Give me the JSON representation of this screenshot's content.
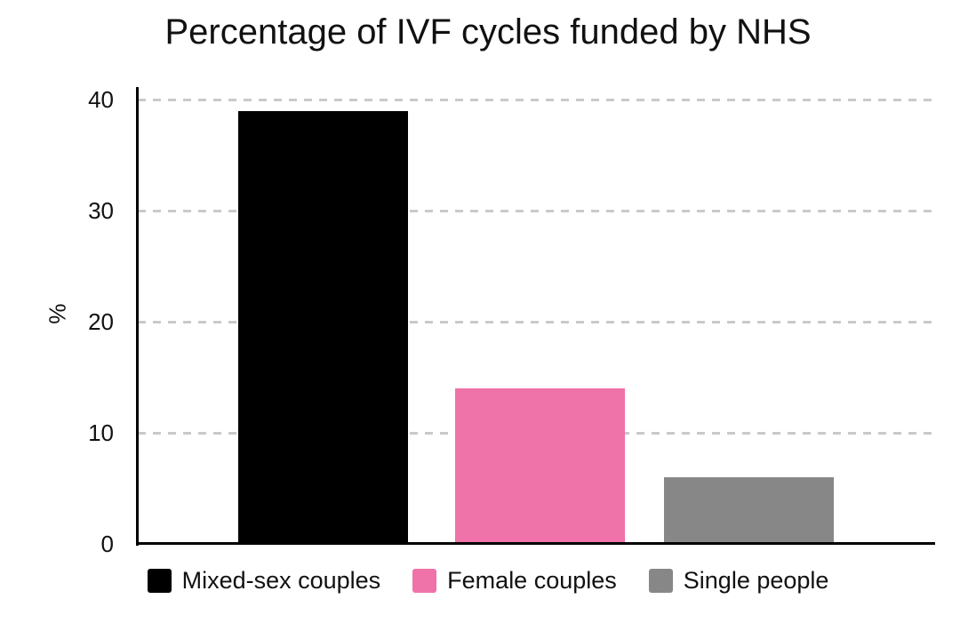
{
  "chart_data": {
    "type": "bar",
    "title": "Percentage of IVF cycles funded by NHS",
    "xlabel": "",
    "ylabel": "%",
    "categories": [
      "Mixed-sex couples",
      "Female couples",
      "Single people"
    ],
    "values": [
      39,
      14,
      6
    ],
    "colors": [
      "#000000",
      "#ef72a8",
      "#878787"
    ],
    "yticks": [
      0,
      10,
      20,
      30,
      40
    ],
    "ylim": [
      0,
      41
    ],
    "grid": "horizontal dashed gray lines at each y tick",
    "legend_position": "bottom-center"
  },
  "legend": {
    "items": [
      {
        "label": "Mixed-sex couples",
        "color": "#000000"
      },
      {
        "label": "Female couples",
        "color": "#ef72a8"
      },
      {
        "label": "Single people",
        "color": "#878787"
      }
    ]
  }
}
